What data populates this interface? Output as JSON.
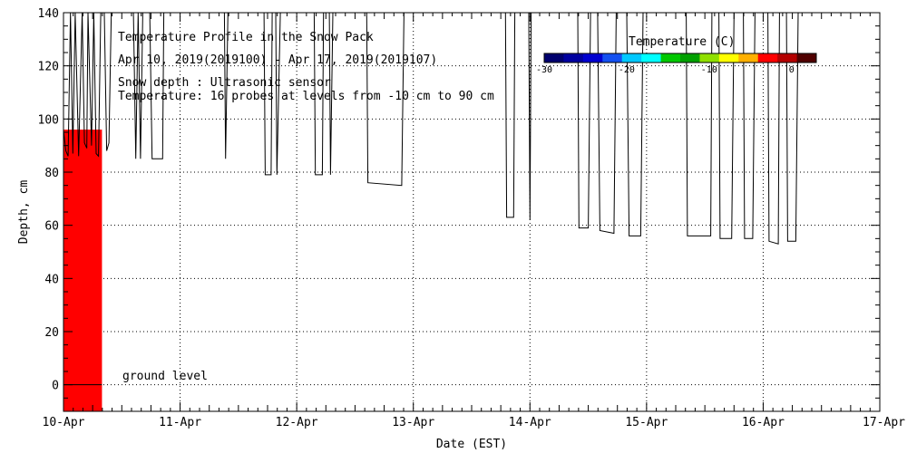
{
  "chart_data": {
    "type": "line",
    "title": "Temperature Profile in the Snow Pack",
    "subtitle": "Apr 10, 2019(2019100) - Apr 17, 2019(2019107)",
    "notes": [
      "Snow depth : Ultrasonic sensor",
      "Temperature: 16 probes at levels from -10 cm to 90 cm"
    ],
    "ground_label": "ground level",
    "xlabel": "Date (EST)",
    "ylabel": "Depth, cm",
    "x_categories": [
      "10-Apr",
      "11-Apr",
      "12-Apr",
      "13-Apr",
      "14-Apr",
      "15-Apr",
      "16-Apr",
      "17-Apr"
    ],
    "xlim": [
      0,
      7
    ],
    "ylim": [
      -10,
      140
    ],
    "yticks": [
      0,
      20,
      40,
      60,
      80,
      100,
      120,
      140
    ],
    "grid": true,
    "legend": {
      "title": "Temperature (C)",
      "ticks": [
        -30,
        -20,
        -10,
        0
      ],
      "range": [
        -30,
        3
      ],
      "colors": [
        "#00006e",
        "#0000a0",
        "#0000d0",
        "#1450f0",
        "#00c8ff",
        "#00ffff",
        "#00c800",
        "#00a000",
        "#90e000",
        "#ffff00",
        "#ffb000",
        "#ff0000",
        "#b40000",
        "#500000"
      ],
      "placement": "top-right"
    },
    "temperature_fill": {
      "x_start": 0.0,
      "x_end": 0.33,
      "depth_top": 96,
      "depth_bottom": -10,
      "color": "#ff0000"
    },
    "series": [
      {
        "name": "Snow depth",
        "points": [
          [
            0.0,
            96
          ],
          [
            0.02,
            88
          ],
          [
            0.04,
            86
          ],
          [
            0.06,
            140
          ],
          [
            0.08,
            87
          ],
          [
            0.1,
            140
          ],
          [
            0.13,
            86
          ],
          [
            0.16,
            140
          ],
          [
            0.18,
            91
          ],
          [
            0.2,
            89
          ],
          [
            0.21,
            140
          ],
          [
            0.24,
            90
          ],
          [
            0.26,
            140
          ],
          [
            0.28,
            87
          ],
          [
            0.3,
            86
          ],
          [
            0.32,
            140
          ],
          [
            0.35,
            140
          ],
          [
            0.37,
            88
          ],
          [
            0.39,
            91
          ],
          [
            0.41,
            140
          ],
          [
            0.6,
            140
          ],
          [
            0.62,
            85
          ],
          [
            0.64,
            140
          ],
          [
            0.66,
            85
          ],
          [
            0.68,
            140
          ],
          [
            0.74,
            140
          ],
          [
            0.76,
            85
          ],
          [
            0.78,
            85
          ],
          [
            0.85,
            85
          ],
          [
            0.86,
            140
          ],
          [
            1.38,
            140
          ],
          [
            1.39,
            85
          ],
          [
            1.41,
            140
          ],
          [
            1.72,
            140
          ],
          [
            1.73,
            79
          ],
          [
            1.78,
            79
          ],
          [
            1.79,
            140
          ],
          [
            1.82,
            140
          ],
          [
            1.83,
            79
          ],
          [
            1.86,
            140
          ],
          [
            2.15,
            140
          ],
          [
            2.16,
            79
          ],
          [
            2.22,
            79
          ],
          [
            2.23,
            140
          ],
          [
            2.28,
            140
          ],
          [
            2.29,
            79
          ],
          [
            2.31,
            140
          ],
          [
            2.6,
            140
          ],
          [
            2.61,
            76
          ],
          [
            2.9,
            75
          ],
          [
            2.92,
            140
          ],
          [
            3.79,
            140
          ],
          [
            3.8,
            63
          ],
          [
            3.86,
            63
          ],
          [
            3.87,
            140
          ],
          [
            3.99,
            140
          ],
          [
            4.0,
            62
          ],
          [
            4.01,
            140
          ],
          [
            4.41,
            140
          ],
          [
            4.42,
            59
          ],
          [
            4.5,
            59
          ],
          [
            4.52,
            140
          ],
          [
            4.58,
            140
          ],
          [
            4.6,
            58
          ],
          [
            4.72,
            57
          ],
          [
            4.74,
            140
          ],
          [
            4.83,
            140
          ],
          [
            4.85,
            56
          ],
          [
            4.95,
            56
          ],
          [
            4.97,
            140
          ],
          [
            5.34,
            140
          ],
          [
            5.35,
            56
          ],
          [
            5.55,
            56
          ],
          [
            5.56,
            140
          ],
          [
            5.62,
            140
          ],
          [
            5.63,
            55
          ],
          [
            5.73,
            55
          ],
          [
            5.75,
            140
          ],
          [
            5.83,
            140
          ],
          [
            5.84,
            55
          ],
          [
            5.91,
            55
          ],
          [
            5.93,
            140
          ],
          [
            6.04,
            140
          ],
          [
            6.05,
            54
          ],
          [
            6.13,
            53
          ],
          [
            6.14,
            140
          ],
          [
            6.2,
            140
          ],
          [
            6.21,
            54
          ],
          [
            6.28,
            54
          ],
          [
            6.3,
            140
          ],
          [
            6.3,
            140
          ]
        ]
      }
    ]
  }
}
